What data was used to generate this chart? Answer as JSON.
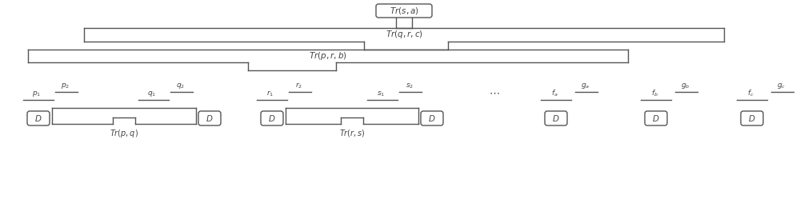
{
  "fig_width": 10.1,
  "fig_height": 2.54,
  "bg_color": "#ffffff",
  "line_color": "#555555",
  "text_color": "#444444",
  "lw": 1.0,
  "font_size": 7.5,
  "small_font": 6.5
}
